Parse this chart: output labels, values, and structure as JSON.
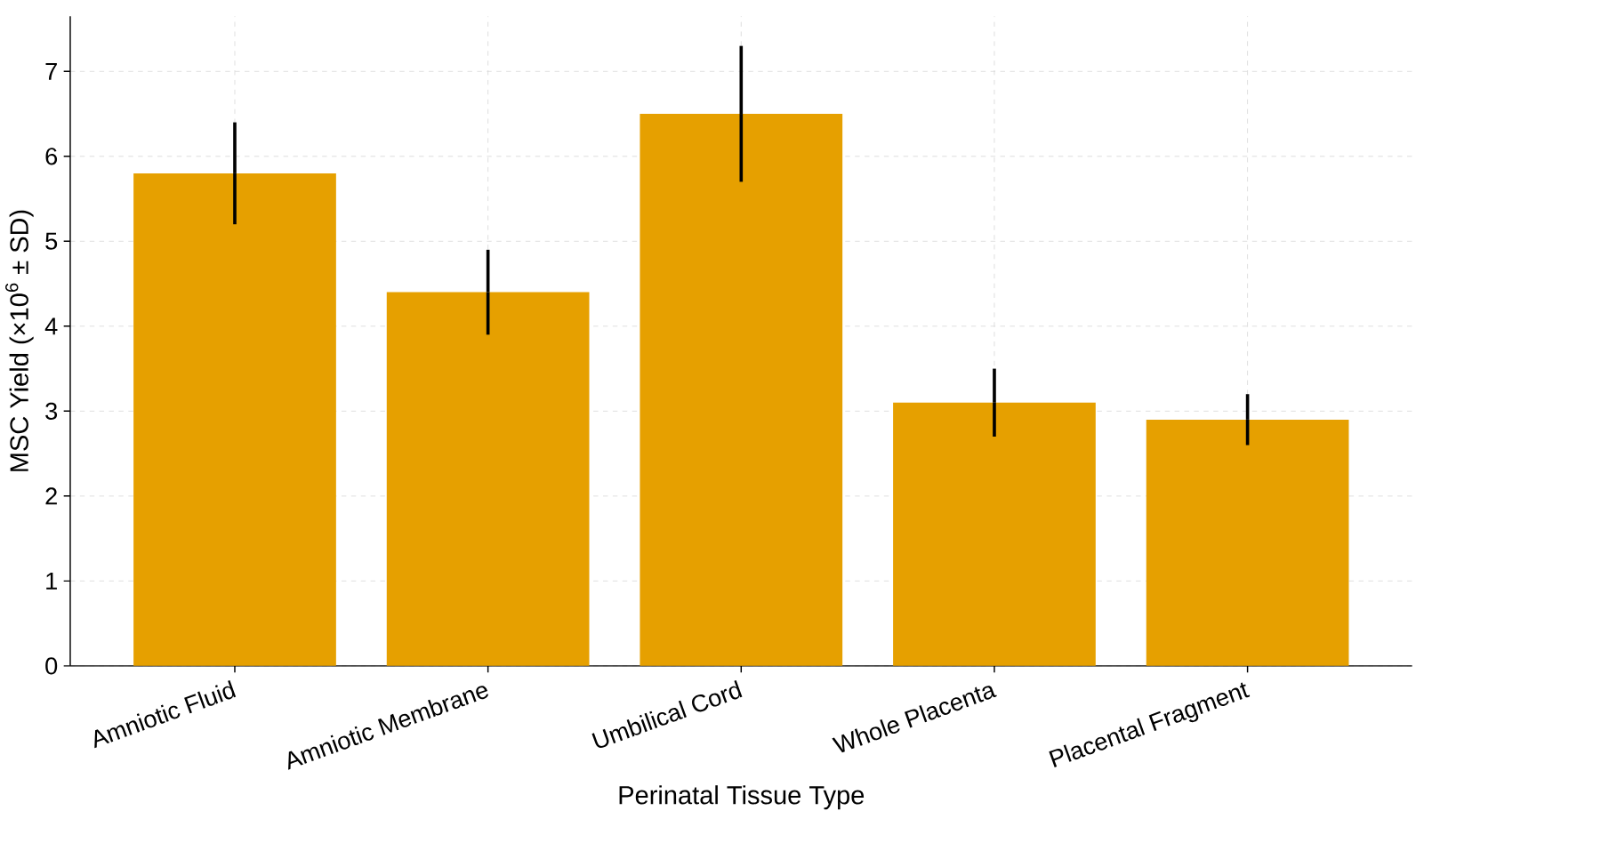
{
  "chart_data": {
    "type": "bar",
    "xlabel": "Perinatal Tissue Type",
    "ylabel": "MSC Yield (×10$^{6}$ ± SD)",
    "categories": [
      "Amniotic Fluid",
      "Amniotic Membrane",
      "Umbilical Cord",
      "Whole Placenta",
      "Placental Fragment"
    ],
    "values": [
      5.8,
      4.4,
      6.5,
      3.1,
      2.9
    ],
    "errors": [
      0.6,
      0.5,
      0.8,
      0.4,
      0.3
    ],
    "color": "#e6a000",
    "ylim": [
      0,
      7.65
    ],
    "yticks": [
      0,
      1,
      2,
      3,
      4,
      5,
      6,
      7
    ],
    "grid": true
  }
}
